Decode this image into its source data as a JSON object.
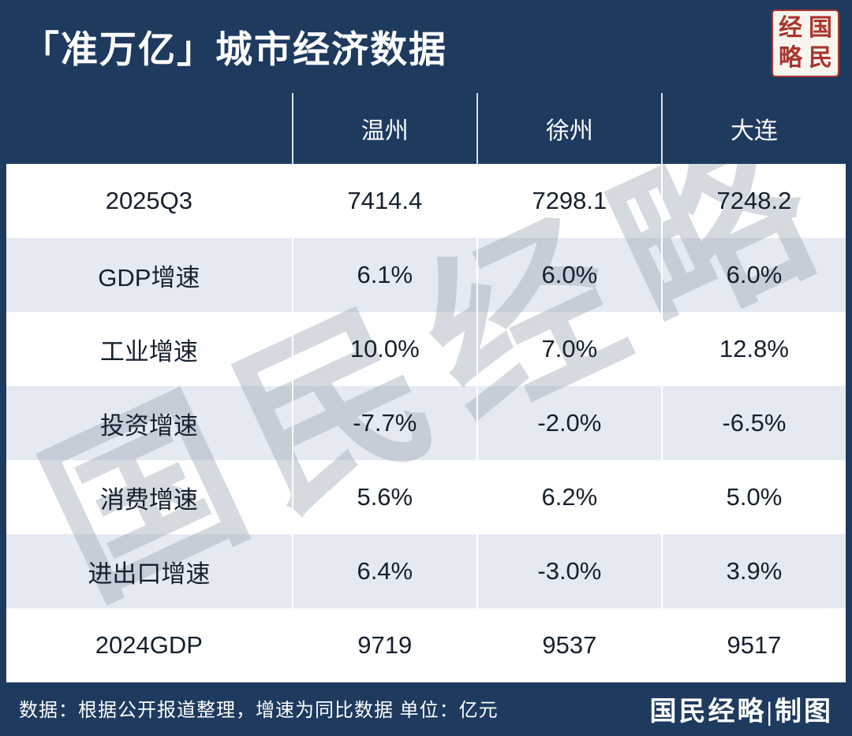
{
  "page": {
    "title": "「准万亿」城市经济数据",
    "footer_note": "数据：根据公开报道整理，增速为同比数据 单位：亿元",
    "footer_credit": "国民经略|制图",
    "watermark": "国民经略"
  },
  "seal": {
    "tl": "经",
    "tr": "国",
    "bl": "略",
    "br": "民"
  },
  "colors": {
    "background": "#1e3a5f",
    "row_alt": "#e5eaf2",
    "seal_red": "#a9352c",
    "text_dark": "#15202e"
  },
  "chart_data": {
    "type": "table",
    "title": "「准万亿」城市经济数据",
    "columns": [
      "温州",
      "徐州",
      "大连"
    ],
    "row_header_label": "",
    "rows": [
      {
        "label": "2025Q3",
        "values": [
          "7414.4",
          "7298.1",
          "7248.2"
        ]
      },
      {
        "label": "GDP增速",
        "values": [
          "6.1%",
          "6.0%",
          "6.0%"
        ]
      },
      {
        "label": "工业增速",
        "values": [
          "10.0%",
          "7.0%",
          "12.8%"
        ]
      },
      {
        "label": "投资增速",
        "values": [
          "-7.7%",
          "-2.0%",
          "-6.5%"
        ]
      },
      {
        "label": "消费增速",
        "values": [
          "5.6%",
          "6.2%",
          "5.0%"
        ]
      },
      {
        "label": "进出口增速",
        "values": [
          "6.4%",
          "-3.0%",
          "3.9%"
        ]
      },
      {
        "label": "2024GDP",
        "values": [
          "9719",
          "9537",
          "9517"
        ]
      }
    ],
    "unit": "亿元"
  }
}
